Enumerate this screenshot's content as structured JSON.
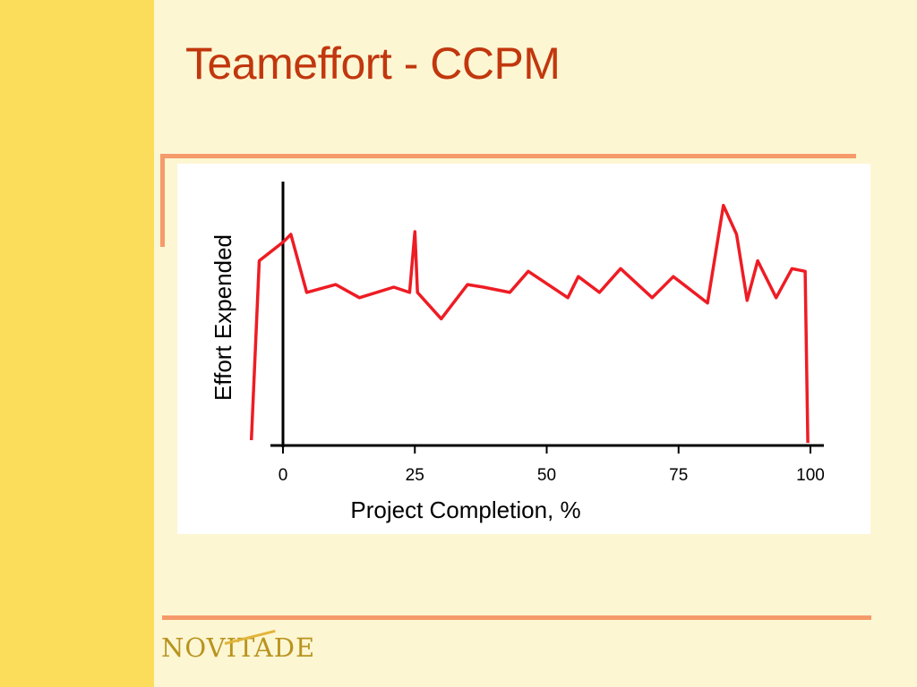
{
  "slide": {
    "title": "Teameffort - CCPM",
    "logo_text": "NOVITADE"
  },
  "colors": {
    "sidebar": "#fbdd5b",
    "background": "#fdf6d2",
    "title": "#c1370e",
    "rules": "#f59a6a",
    "line": "#ee1c24"
  },
  "chart_data": {
    "type": "line",
    "title": "",
    "xlabel": "Project Completion, %",
    "ylabel": "Effort Expended",
    "xlim": [
      0,
      100
    ],
    "ylim": [
      0,
      100
    ],
    "x_ticks": [
      0,
      25,
      50,
      75,
      100
    ],
    "x_tick_labels": [
      "0",
      "25",
      "50",
      "75",
      "100"
    ],
    "grid": false,
    "legend": "none",
    "series": [
      {
        "name": "",
        "color": "#ee1c24",
        "x": [
          -6,
          -4.5,
          0,
          1.5,
          4.5,
          10,
          14.5,
          21,
          24,
          25,
          25.5,
          30,
          35,
          38,
          43,
          46.5,
          54,
          56,
          60,
          64,
          70,
          74,
          80.5,
          83.5,
          86,
          88,
          90,
          93.5,
          96.5,
          99,
          99.5
        ],
        "y": [
          2,
          70,
          77,
          80,
          58,
          61,
          56,
          60,
          58,
          81,
          58,
          48,
          61,
          60,
          58,
          66,
          56,
          64,
          58,
          67,
          56,
          64,
          54,
          91,
          80,
          55,
          70,
          56,
          67,
          66,
          1
        ]
      }
    ]
  }
}
